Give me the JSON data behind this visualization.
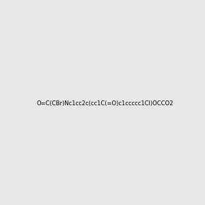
{
  "smiles": "O=C(CBr)Nc1cc2c(cc1C(=O)c1ccccc1Cl)OCCO2",
  "img_size": [
    300,
    300
  ],
  "background": "#e8e8e8",
  "atom_colors": {
    "Br": "#b8860b",
    "N": "#0000ff",
    "O": "#ff0000",
    "Cl": "#00aa00",
    "C": "#404040"
  },
  "title": ""
}
